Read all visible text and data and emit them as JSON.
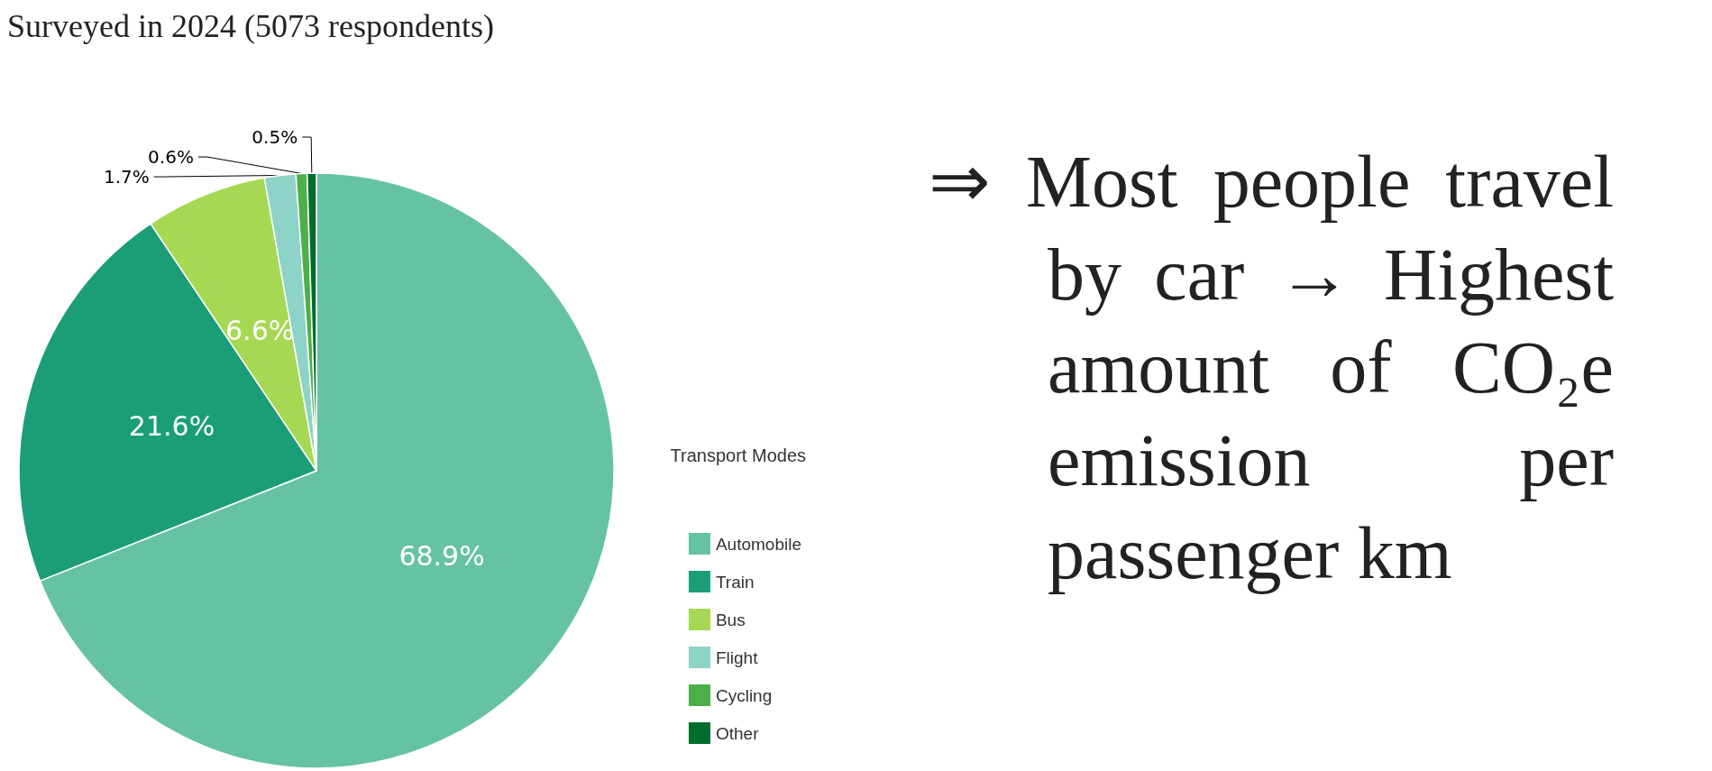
{
  "chart_data": {
    "type": "pie",
    "title": "Surveyed in 2024 (5073 respondents)",
    "legend_title": "Transport Modes",
    "categories": [
      "Automobile",
      "Train",
      "Bus",
      "Flight",
      "Cycling",
      "Other"
    ],
    "values": [
      68.9,
      21.6,
      6.6,
      1.7,
      0.6,
      0.5
    ],
    "value_labels": [
      "68.9%",
      "21.6%",
      "6.6%",
      "1.7%",
      "0.6%",
      "0.5%"
    ],
    "colors": [
      "#66c2a5",
      "#1b9e77",
      "#a6d854",
      "#8dd3c7",
      "#4daf4a",
      "#006d2c"
    ],
    "legend": "bottom right",
    "annotations": [
      "⇒ Most people travel by car → Highest amount of CO₂e emission per passenger km"
    ]
  }
}
